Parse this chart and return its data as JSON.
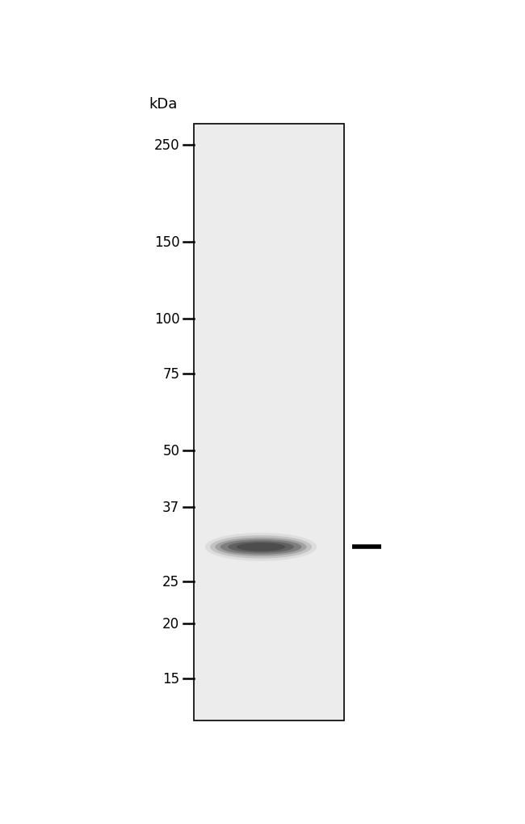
{
  "figure_width": 6.5,
  "figure_height": 10.2,
  "dpi": 100,
  "bg_color": "#ffffff",
  "ladder_marks": [
    250,
    150,
    100,
    75,
    50,
    37,
    25,
    20,
    15
  ],
  "kda_label": "kDa",
  "band_kda": 30,
  "band_color_center": "#505050",
  "band_color_mid": "#808080",
  "band_color_edge": "#b8b8b8",
  "marker_line_color": "#000000",
  "ladder_tick_color": "#000000",
  "text_color": "#000000",
  "border_color": "#000000",
  "lane_bg_color": "#ececec",
  "gel_bg_color": "#ffffff"
}
